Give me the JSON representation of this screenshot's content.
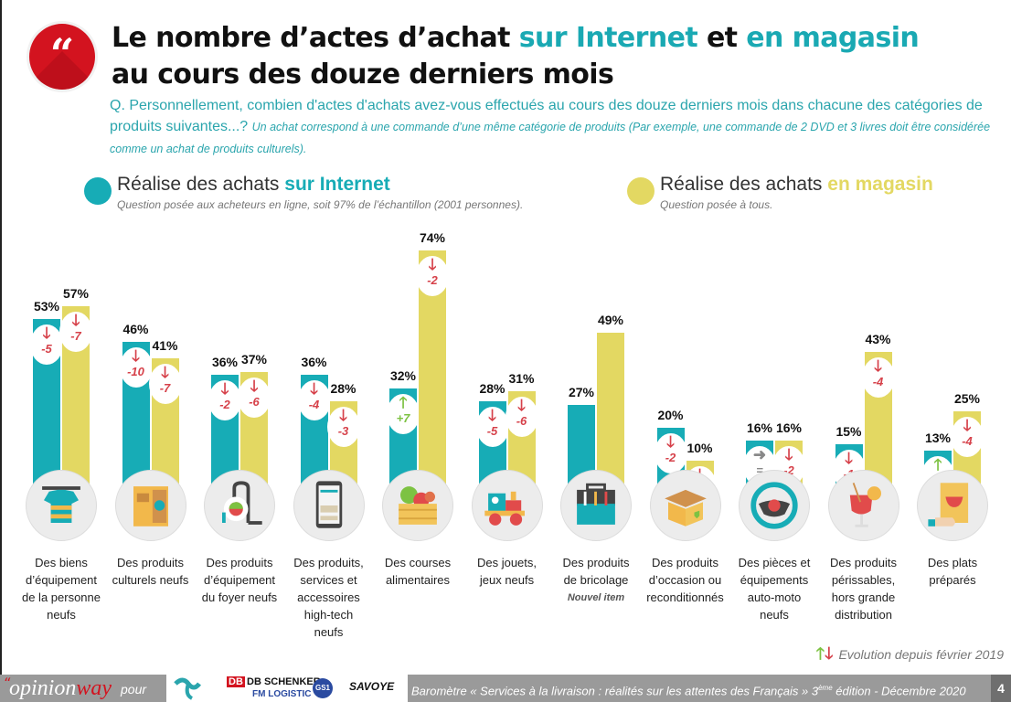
{
  "header": {
    "title_line1_part1": "Le nombre d’actes d’achat ",
    "title_line1_hl1": "sur Internet",
    "title_line1_part2": " et ",
    "title_line1_hl2": "en magasin",
    "title_line2": "au cours des douze derniers mois",
    "quote_glyph": "“",
    "question_main": "Q. Personnellement, combien d'actes d'achats avez-vous effectués au cours des douze derniers mois dans chacune des catégories de produits suivantes...?",
    "question_note": "Un achat correspond à une commande d’une même catégorie de produits (Par exemple, une commande de 2 DVD et 3 livres doit être considérée comme un achat de produits culturels)."
  },
  "legend": {
    "internet": {
      "title_prefix": "Réalise des achats ",
      "title_hl": "sur Internet",
      "subtitle": "Question posée aux acheteurs en ligne, soit 97% de l’échantillon (2001 personnes).",
      "color": "#17acb6"
    },
    "store": {
      "title_prefix": "Réalise des achats ",
      "title_hl": "en magasin",
      "subtitle": "Question posée à tous.",
      "color": "#e3d862"
    }
  },
  "colors": {
    "internet": "#17acb6",
    "store": "#e3d862",
    "up": "#7dc242",
    "down": "#d6414a",
    "equal": "#888888"
  },
  "chart_data": {
    "type": "bar",
    "title": "Le nombre d’actes d’achat sur Internet et en magasin au cours des douze derniers mois",
    "xlabel": "",
    "ylabel": "",
    "ylim": [
      0,
      100
    ],
    "unit": "%",
    "grid": false,
    "legend_position": "top",
    "categories": [
      "Des biens d’équipement de la personne neufs",
      "Des produits culturels neufs",
      "Des produits d’équipement du foyer neufs",
      "Des produits, services et accessoires high-tech neufs",
      "Des courses alimentaires",
      "Des jouets, jeux neufs",
      "Des produits de bricolage",
      "Des produits d’occasion ou reconditionnés",
      "Des pièces et équipements auto-moto neufs",
      "Des produits périssables, hors grande distribution",
      "Des plats préparés"
    ],
    "series": [
      {
        "name": "Réalise des achats sur Internet",
        "values": [
          53,
          46,
          36,
          36,
          32,
          28,
          27,
          20,
          16,
          15,
          13
        ],
        "evolution": [
          "-5",
          "-10",
          "-2",
          "-4",
          "+7",
          "-5",
          null,
          "-2",
          "=",
          "-1",
          "+3"
        ]
      },
      {
        "name": "Réalise des achats en magasin",
        "values": [
          57,
          41,
          37,
          28,
          74,
          31,
          49,
          10,
          16,
          43,
          25
        ],
        "evolution": [
          "-7",
          "-7",
          "-6",
          "-3",
          "-2",
          "-6",
          null,
          "-1",
          "-2",
          "-4",
          "-4"
        ]
      }
    ],
    "annotations": [
      "Nouvel item (Des produits de bricolage)",
      "Evolution depuis février 2019"
    ]
  },
  "categories": [
    {
      "label_lines": [
        "Des biens",
        "d’équipement",
        "de la personne",
        "neufs"
      ],
      "icon": "tshirt-icon",
      "note": ""
    },
    {
      "label_lines": [
        "Des produits",
        "culturels neufs"
      ],
      "icon": "book-icon",
      "note": ""
    },
    {
      "label_lines": [
        "Des produits",
        "d’équipement",
        "du foyer neufs"
      ],
      "icon": "vacuum-cleaner-icon",
      "note": ""
    },
    {
      "label_lines": [
        "Des produits,",
        "services et",
        "accessoires",
        "high-tech",
        "neufs"
      ],
      "icon": "smartphone-icon",
      "note": ""
    },
    {
      "label_lines": [
        "Des courses",
        "alimentaires"
      ],
      "icon": "grocery-crate-icon",
      "note": ""
    },
    {
      "label_lines": [
        "Des jouets,",
        "jeux neufs"
      ],
      "icon": "toy-train-icon",
      "note": ""
    },
    {
      "label_lines": [
        "Des produits",
        "de bricolage"
      ],
      "icon": "toolbox-icon",
      "note": "Nouvel item"
    },
    {
      "label_lines": [
        "Des produits",
        "d’occasion ou",
        "reconditionnés"
      ],
      "icon": "open-box-icon",
      "note": ""
    },
    {
      "label_lines": [
        "Des pièces et",
        "équipements",
        "auto-moto",
        "neufs"
      ],
      "icon": "steering-wheel-icon",
      "note": ""
    },
    {
      "label_lines": [
        "Des produits",
        "périssables,",
        "hors grande",
        "distribution"
      ],
      "icon": "cocktail-icon",
      "note": ""
    },
    {
      "label_lines": [
        "Des plats",
        "préparés"
      ],
      "icon": "takeaway-food-icon",
      "note": ""
    }
  ],
  "evolution_legend": {
    "up_glyph": "🡑",
    "down_glyph": "🡓",
    "text": "Evolution depuis février 2019"
  },
  "footer": {
    "brand_quote": "“",
    "brand_opinion": "opinion",
    "brand_way": "way",
    "pour": "pour",
    "logos": [
      "SpilesProject",
      "DB SCHENKER",
      "FM LOGISTIC",
      "GS1 France",
      "SAVOYE"
    ],
    "barometer_text_part1": "Baromètre  « Services à la livraison : réalités sur les attentes des Français » 3",
    "barometer_sup": "ème",
    "barometer_text_part2": " édition - Décembre 2020",
    "page_number": "4"
  }
}
